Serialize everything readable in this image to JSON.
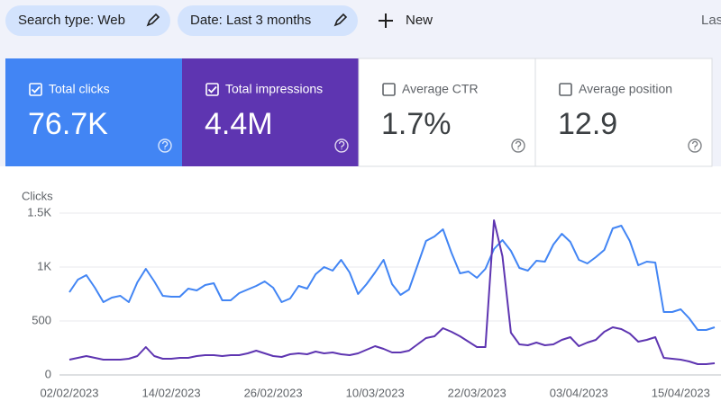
{
  "toolbar": {
    "chips": [
      "Search type: Web",
      "Date: Last 3 months"
    ],
    "new_button": "New",
    "last_updated": "Las"
  },
  "metrics": [
    {
      "label": "Total clicks",
      "value": "76.7K",
      "checked": true,
      "color": "#4285f4"
    },
    {
      "label": "Total impressions",
      "value": "4.4M",
      "checked": true,
      "color": "#5e35b1"
    },
    {
      "label": "Average CTR",
      "value": "1.7%",
      "checked": false,
      "color": "#ffffff"
    },
    {
      "label": "Average position",
      "value": "12.9",
      "checked": false,
      "color": "#ffffff"
    }
  ],
  "chart_data": {
    "type": "line",
    "y_label": "Clicks",
    "categories": [
      "02/02/2023",
      null,
      null,
      null,
      null,
      null,
      null,
      null,
      null,
      null,
      null,
      null,
      "14/02/2023",
      null,
      null,
      null,
      null,
      null,
      null,
      null,
      null,
      null,
      null,
      null,
      "26/02/2023",
      null,
      null,
      null,
      null,
      null,
      null,
      null,
      null,
      null,
      null,
      null,
      "10/03/2023",
      null,
      null,
      null,
      null,
      null,
      null,
      null,
      null,
      null,
      null,
      null,
      "22/03/2023",
      null,
      null,
      null,
      null,
      null,
      null,
      null,
      null,
      null,
      null,
      null,
      "03/04/2023",
      null,
      null,
      null,
      null,
      null,
      null,
      null,
      null,
      null,
      null,
      null,
      "15/04/2023",
      null,
      null,
      null,
      null
    ],
    "series": [
      {
        "color": "#4285f4",
        "values": [
          767,
          883,
          925,
          808,
          675,
          717,
          733,
          675,
          858,
          983,
          867,
          733,
          725,
          725,
          800,
          783,
          833,
          850,
          692,
          692,
          758,
          792,
          825,
          867,
          808,
          675,
          708,
          825,
          800,
          933,
          1000,
          967,
          1067,
          950,
          750,
          842,
          950,
          1067,
          842,
          742,
          792,
          1017,
          1242,
          1283,
          1350,
          1133,
          942,
          958,
          900,
          983,
          1167,
          1250,
          1150,
          992,
          967,
          1058,
          1050,
          1208,
          1308,
          1233,
          1067,
          1033,
          1092,
          1158,
          1358,
          1383,
          1242,
          1017,
          1050,
          1042,
          583,
          583,
          608,
          525,
          417,
          417,
          442
        ]
      },
      {
        "color": "#5e35b1",
        "values": [
          142,
          158,
          175,
          158,
          142,
          142,
          142,
          150,
          175,
          258,
          175,
          150,
          150,
          158,
          158,
          175,
          183,
          183,
          175,
          183,
          183,
          200,
          225,
          200,
          175,
          167,
          192,
          200,
          192,
          217,
          200,
          208,
          192,
          183,
          200,
          233,
          267,
          242,
          208,
          208,
          225,
          283,
          342,
          358,
          433,
          400,
          358,
          308,
          258,
          258,
          1433,
          1100,
          392,
          283,
          275,
          300,
          275,
          283,
          325,
          350,
          267,
          300,
          325,
          400,
          442,
          425,
          383,
          308,
          325,
          350,
          158,
          150,
          142,
          125,
          100,
          100,
          108
        ]
      }
    ],
    "ylim": [
      0,
      1500
    ],
    "yticks": [
      0,
      500,
      {
        "value": 1000,
        "label": "1K"
      },
      {
        "value": 1500,
        "label": "1.5K"
      }
    ],
    "grid": true
  }
}
